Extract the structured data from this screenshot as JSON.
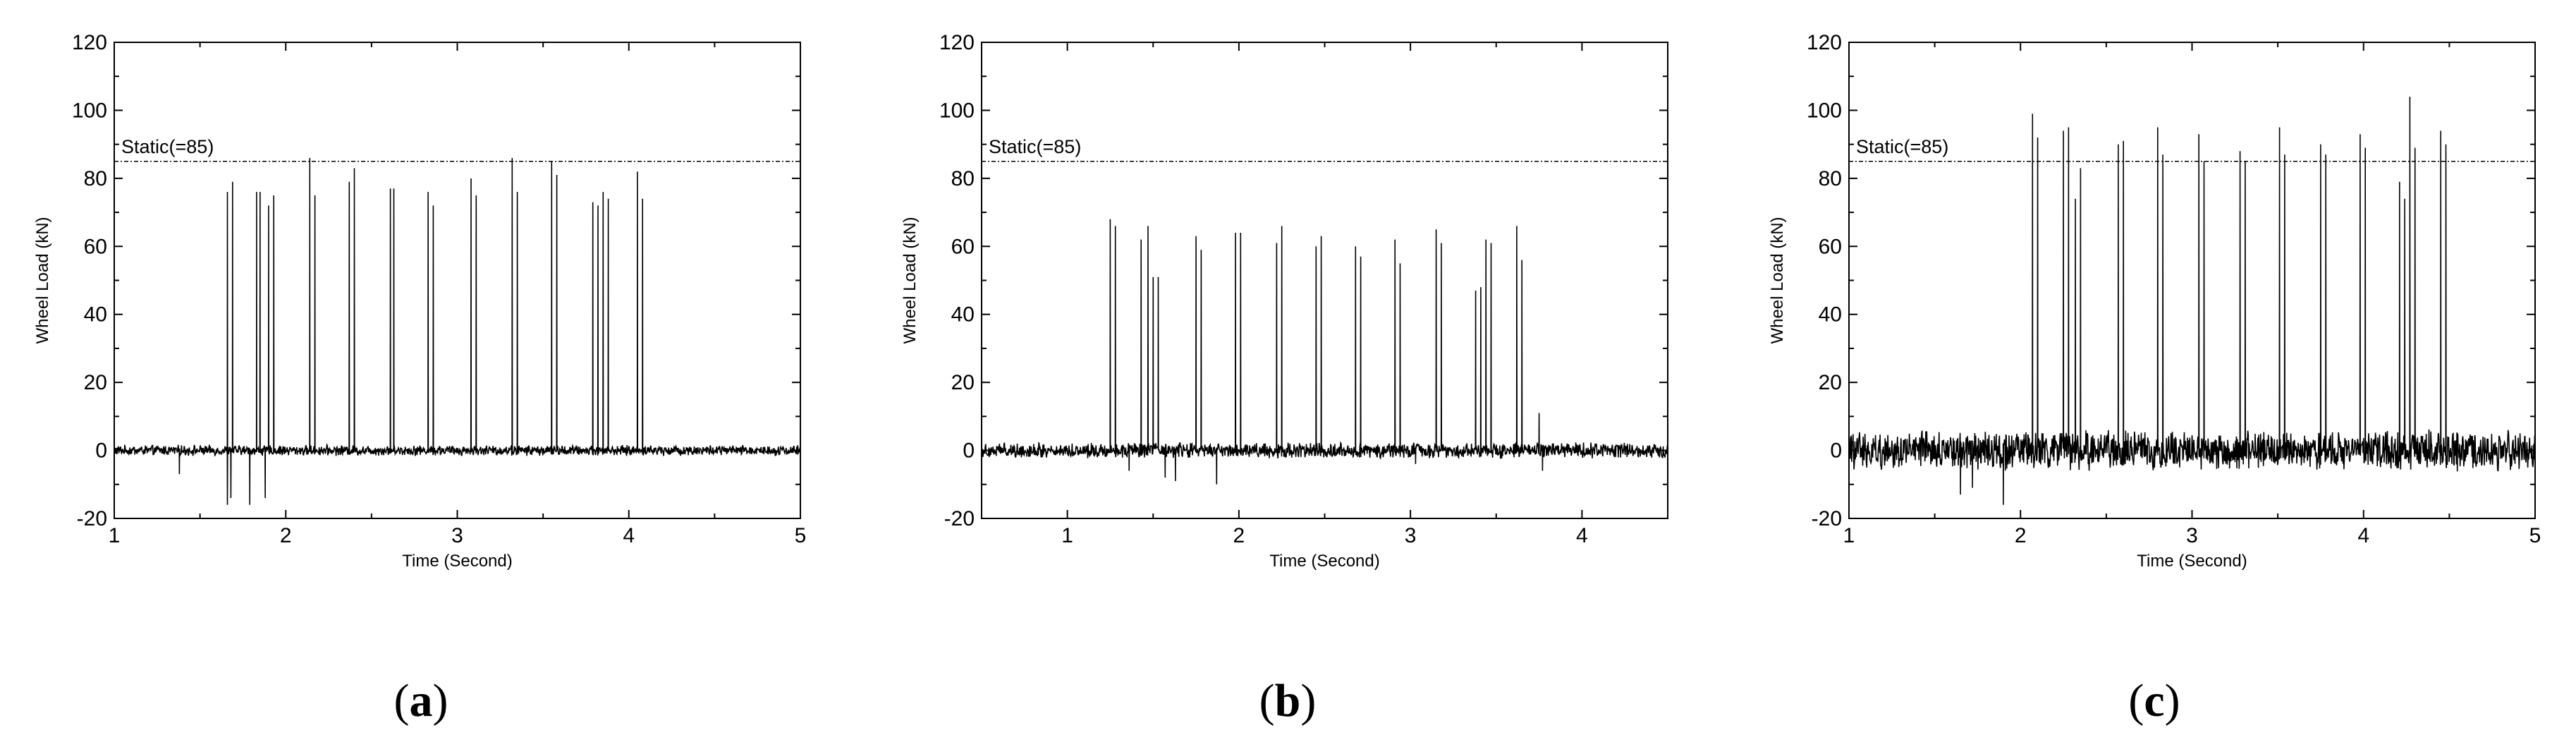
{
  "figure": {
    "panel_labels": [
      "(a)",
      "(b)",
      "(c)"
    ]
  },
  "chart_data": [
    {
      "type": "line",
      "panel": "(a)",
      "xlabel": "Time (Second)",
      "ylabel": "Wheel Load (kN)",
      "xlim": [
        1,
        5
      ],
      "ylim": [
        -20,
        120
      ],
      "xticks": [
        1,
        2,
        3,
        4,
        5
      ],
      "yticks": [
        -20,
        0,
        20,
        40,
        60,
        80,
        100,
        120
      ],
      "grid": false,
      "reference_line": {
        "label": "Static(=85)",
        "y": 85
      },
      "noise_amplitude": 1.2,
      "dips": [
        [
          1.38,
          -7
        ],
        [
          1.66,
          -16
        ],
        [
          1.68,
          -14
        ],
        [
          1.79,
          -16
        ],
        [
          1.88,
          -14
        ]
      ],
      "peaks": [
        [
          1.66,
          76
        ],
        [
          1.69,
          79
        ],
        [
          1.83,
          76
        ],
        [
          1.85,
          76
        ],
        [
          1.9,
          72
        ],
        [
          1.93,
          75
        ],
        [
          2.14,
          86
        ],
        [
          2.17,
          75
        ],
        [
          2.37,
          79
        ],
        [
          2.4,
          83
        ],
        [
          2.61,
          77
        ],
        [
          2.63,
          77
        ],
        [
          2.83,
          76
        ],
        [
          2.86,
          72
        ],
        [
          3.08,
          80
        ],
        [
          3.11,
          75
        ],
        [
          3.32,
          86
        ],
        [
          3.35,
          76
        ],
        [
          3.55,
          85
        ],
        [
          3.58,
          81
        ],
        [
          3.79,
          73
        ],
        [
          3.82,
          72
        ],
        [
          3.85,
          76
        ],
        [
          3.88,
          74
        ],
        [
          4.05,
          82
        ],
        [
          4.08,
          74
        ]
      ],
      "series": [
        {
          "color": "#000000"
        }
      ]
    },
    {
      "type": "line",
      "panel": "(b)",
      "xlabel": "Time (Second)",
      "ylabel": "Wheel Load (kN)",
      "xlim": [
        0.5,
        4.5
      ],
      "ylim": [
        -20,
        120
      ],
      "xticks": [
        1,
        2,
        3,
        4
      ],
      "yticks": [
        -20,
        0,
        20,
        40,
        60,
        80,
        100,
        120
      ],
      "grid": false,
      "reference_line": {
        "label": "Static(=85)",
        "y": 85
      },
      "noise_amplitude": 1.8,
      "dips": [
        [
          1.36,
          -6
        ],
        [
          1.57,
          -8
        ],
        [
          1.63,
          -9
        ],
        [
          1.87,
          -10
        ],
        [
          3.03,
          -4
        ],
        [
          3.77,
          -6
        ]
      ],
      "peaks": [
        [
          1.25,
          68
        ],
        [
          1.28,
          66
        ],
        [
          1.43,
          62
        ],
        [
          1.47,
          66
        ],
        [
          1.5,
          51
        ],
        [
          1.53,
          51
        ],
        [
          1.75,
          63
        ],
        [
          1.78,
          59
        ],
        [
          1.98,
          64
        ],
        [
          2.01,
          64
        ],
        [
          2.22,
          61
        ],
        [
          2.25,
          66
        ],
        [
          2.45,
          60
        ],
        [
          2.48,
          63
        ],
        [
          2.68,
          60
        ],
        [
          2.71,
          57
        ],
        [
          2.91,
          62
        ],
        [
          2.94,
          55
        ],
        [
          3.15,
          65
        ],
        [
          3.18,
          61
        ],
        [
          3.38,
          47
        ],
        [
          3.41,
          48
        ],
        [
          3.44,
          62
        ],
        [
          3.47,
          61
        ],
        [
          3.62,
          66
        ],
        [
          3.65,
          56
        ],
        [
          3.75,
          11
        ]
      ],
      "series": [
        {
          "color": "#000000"
        }
      ]
    },
    {
      "type": "line",
      "panel": "(c)",
      "xlabel": "Time (Second)",
      "ylabel": "Wheel Load (kN)",
      "xlim": [
        1,
        5
      ],
      "ylim": [
        -20,
        120
      ],
      "xticks": [
        1,
        2,
        3,
        4,
        5
      ],
      "yticks": [
        -20,
        0,
        20,
        40,
        60,
        80,
        100,
        120
      ],
      "grid": false,
      "reference_line": {
        "label": "Static(=85)",
        "y": 85
      },
      "noise_amplitude": 4.5,
      "dips": [
        [
          1.65,
          -13
        ],
        [
          1.72,
          -11
        ],
        [
          1.9,
          -16
        ]
      ],
      "peaks": [
        [
          2.07,
          99
        ],
        [
          2.1,
          92
        ],
        [
          2.25,
          94
        ],
        [
          2.28,
          95
        ],
        [
          2.32,
          74
        ],
        [
          2.35,
          83
        ],
        [
          2.57,
          90
        ],
        [
          2.6,
          91
        ],
        [
          2.8,
          95
        ],
        [
          2.83,
          87
        ],
        [
          3.04,
          93
        ],
        [
          3.07,
          85
        ],
        [
          3.28,
          88
        ],
        [
          3.31,
          85
        ],
        [
          3.51,
          95
        ],
        [
          3.54,
          87
        ],
        [
          3.75,
          90
        ],
        [
          3.78,
          87
        ],
        [
          3.98,
          93
        ],
        [
          4.01,
          89
        ],
        [
          4.21,
          79
        ],
        [
          4.24,
          74
        ],
        [
          4.27,
          104
        ],
        [
          4.3,
          89
        ],
        [
          4.45,
          94
        ],
        [
          4.48,
          90
        ]
      ],
      "series": [
        {
          "color": "#000000"
        }
      ]
    }
  ]
}
